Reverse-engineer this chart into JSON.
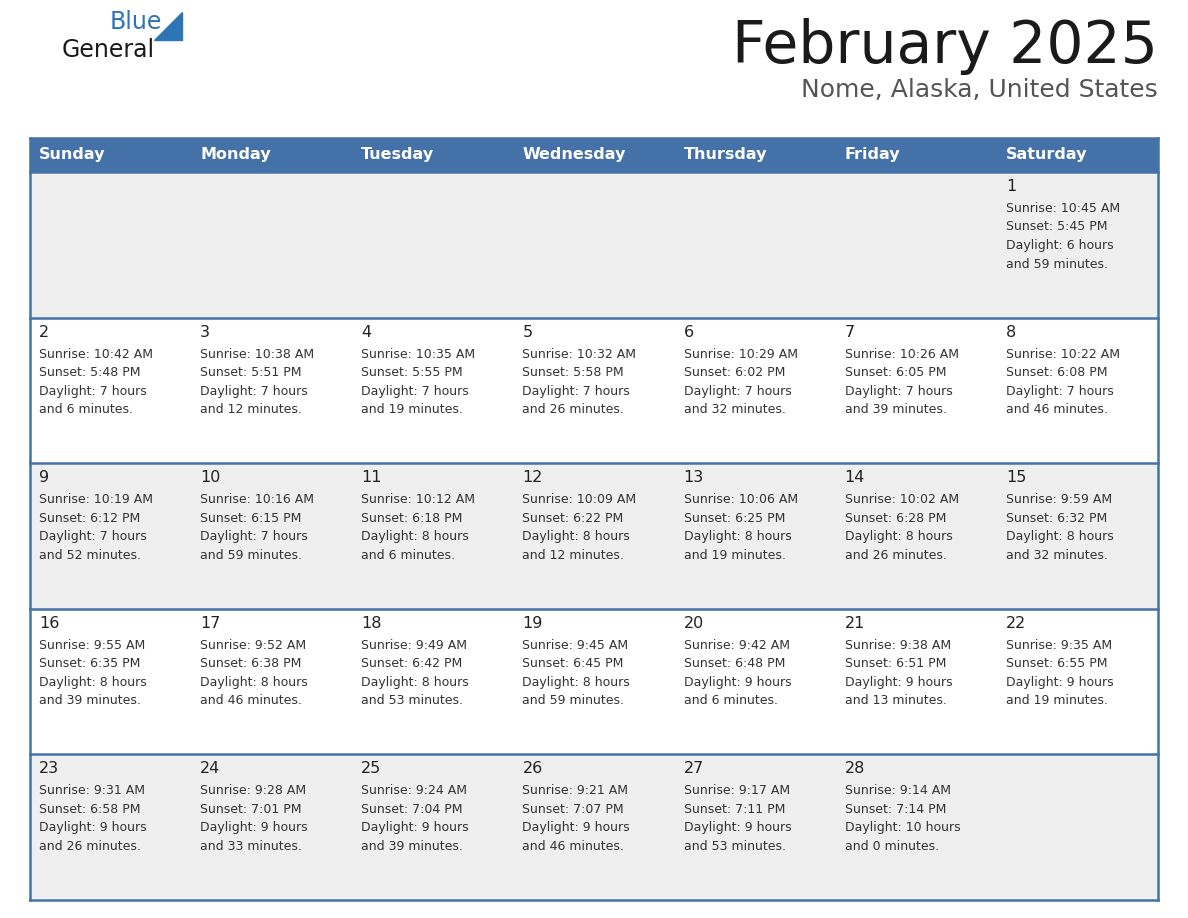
{
  "title": "February 2025",
  "subtitle": "Nome, Alaska, United States",
  "header_bg": "#4472a8",
  "header_text": "#ffffff",
  "cell_bg_odd": "#efefef",
  "cell_bg_even": "#ffffff",
  "border_color": "#4472a8",
  "text_color": "#333333",
  "days_of_week": [
    "Sunday",
    "Monday",
    "Tuesday",
    "Wednesday",
    "Thursday",
    "Friday",
    "Saturday"
  ],
  "calendar_data": [
    [
      null,
      null,
      null,
      null,
      null,
      null,
      {
        "day": 1,
        "sunrise": "10:45 AM",
        "sunset": "5:45 PM",
        "daylight": "6 hours\nand 59 minutes."
      }
    ],
    [
      {
        "day": 2,
        "sunrise": "10:42 AM",
        "sunset": "5:48 PM",
        "daylight": "7 hours\nand 6 minutes."
      },
      {
        "day": 3,
        "sunrise": "10:38 AM",
        "sunset": "5:51 PM",
        "daylight": "7 hours\nand 12 minutes."
      },
      {
        "day": 4,
        "sunrise": "10:35 AM",
        "sunset": "5:55 PM",
        "daylight": "7 hours\nand 19 minutes."
      },
      {
        "day": 5,
        "sunrise": "10:32 AM",
        "sunset": "5:58 PM",
        "daylight": "7 hours\nand 26 minutes."
      },
      {
        "day": 6,
        "sunrise": "10:29 AM",
        "sunset": "6:02 PM",
        "daylight": "7 hours\nand 32 minutes."
      },
      {
        "day": 7,
        "sunrise": "10:26 AM",
        "sunset": "6:05 PM",
        "daylight": "7 hours\nand 39 minutes."
      },
      {
        "day": 8,
        "sunrise": "10:22 AM",
        "sunset": "6:08 PM",
        "daylight": "7 hours\nand 46 minutes."
      }
    ],
    [
      {
        "day": 9,
        "sunrise": "10:19 AM",
        "sunset": "6:12 PM",
        "daylight": "7 hours\nand 52 minutes."
      },
      {
        "day": 10,
        "sunrise": "10:16 AM",
        "sunset": "6:15 PM",
        "daylight": "7 hours\nand 59 minutes."
      },
      {
        "day": 11,
        "sunrise": "10:12 AM",
        "sunset": "6:18 PM",
        "daylight": "8 hours\nand 6 minutes."
      },
      {
        "day": 12,
        "sunrise": "10:09 AM",
        "sunset": "6:22 PM",
        "daylight": "8 hours\nand 12 minutes."
      },
      {
        "day": 13,
        "sunrise": "10:06 AM",
        "sunset": "6:25 PM",
        "daylight": "8 hours\nand 19 minutes."
      },
      {
        "day": 14,
        "sunrise": "10:02 AM",
        "sunset": "6:28 PM",
        "daylight": "8 hours\nand 26 minutes."
      },
      {
        "day": 15,
        "sunrise": "9:59 AM",
        "sunset": "6:32 PM",
        "daylight": "8 hours\nand 32 minutes."
      }
    ],
    [
      {
        "day": 16,
        "sunrise": "9:55 AM",
        "sunset": "6:35 PM",
        "daylight": "8 hours\nand 39 minutes."
      },
      {
        "day": 17,
        "sunrise": "9:52 AM",
        "sunset": "6:38 PM",
        "daylight": "8 hours\nand 46 minutes."
      },
      {
        "day": 18,
        "sunrise": "9:49 AM",
        "sunset": "6:42 PM",
        "daylight": "8 hours\nand 53 minutes."
      },
      {
        "day": 19,
        "sunrise": "9:45 AM",
        "sunset": "6:45 PM",
        "daylight": "8 hours\nand 59 minutes."
      },
      {
        "day": 20,
        "sunrise": "9:42 AM",
        "sunset": "6:48 PM",
        "daylight": "9 hours\nand 6 minutes."
      },
      {
        "day": 21,
        "sunrise": "9:38 AM",
        "sunset": "6:51 PM",
        "daylight": "9 hours\nand 13 minutes."
      },
      {
        "day": 22,
        "sunrise": "9:35 AM",
        "sunset": "6:55 PM",
        "daylight": "9 hours\nand 19 minutes."
      }
    ],
    [
      {
        "day": 23,
        "sunrise": "9:31 AM",
        "sunset": "6:58 PM",
        "daylight": "9 hours\nand 26 minutes."
      },
      {
        "day": 24,
        "sunrise": "9:28 AM",
        "sunset": "7:01 PM",
        "daylight": "9 hours\nand 33 minutes."
      },
      {
        "day": 25,
        "sunrise": "9:24 AM",
        "sunset": "7:04 PM",
        "daylight": "9 hours\nand 39 minutes."
      },
      {
        "day": 26,
        "sunrise": "9:21 AM",
        "sunset": "7:07 PM",
        "daylight": "9 hours\nand 46 minutes."
      },
      {
        "day": 27,
        "sunrise": "9:17 AM",
        "sunset": "7:11 PM",
        "daylight": "9 hours\nand 53 minutes."
      },
      {
        "day": 28,
        "sunrise": "9:14 AM",
        "sunset": "7:14 PM",
        "daylight": "10 hours\nand 0 minutes."
      },
      null
    ]
  ],
  "fig_width": 11.88,
  "fig_height": 9.18,
  "dpi": 100
}
